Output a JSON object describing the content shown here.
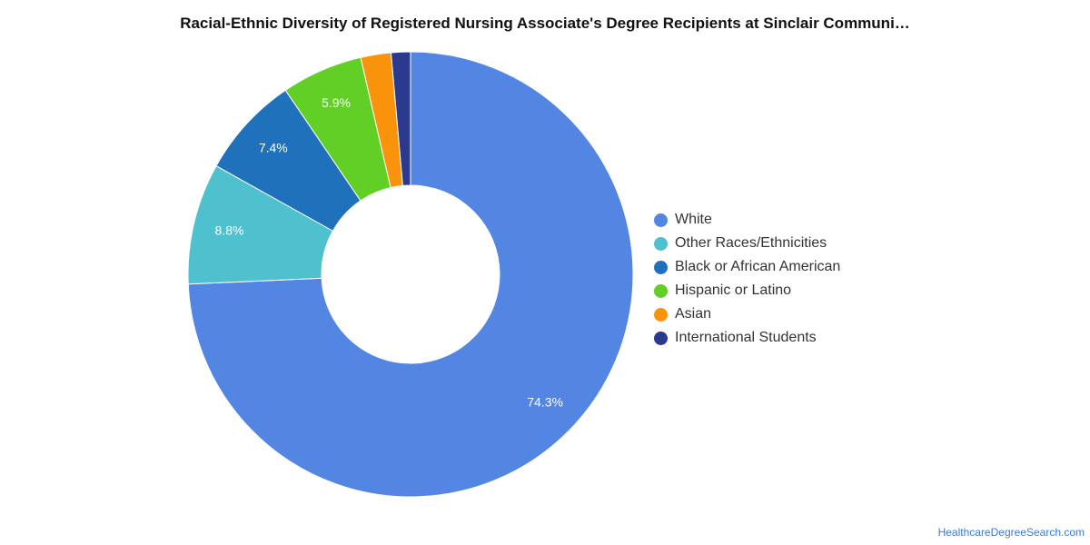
{
  "chart_data": {
    "type": "pie",
    "title": "Racial-Ethnic Diversity of Registered Nursing Associate's Degree Recipients at Sinclair Communi…",
    "categories": [
      "White",
      "Other Races/Ethnicities",
      "Black or African American",
      "Hispanic or Latino",
      "Asian",
      "International Students"
    ],
    "values": [
      74.3,
      8.8,
      7.4,
      5.9,
      2.2,
      1.4
    ],
    "data_labels": [
      "74.3%",
      "8.8%",
      "7.4%",
      "5.9%",
      "",
      ""
    ],
    "colors": [
      "#5385e3",
      "#4fc1ce",
      "#1f71bb",
      "#61cf26",
      "#f9930b",
      "#2b3a8f"
    ],
    "donut": true,
    "legend_position": "right"
  },
  "credit": {
    "text": "HealthcareDegreeSearch.com"
  }
}
